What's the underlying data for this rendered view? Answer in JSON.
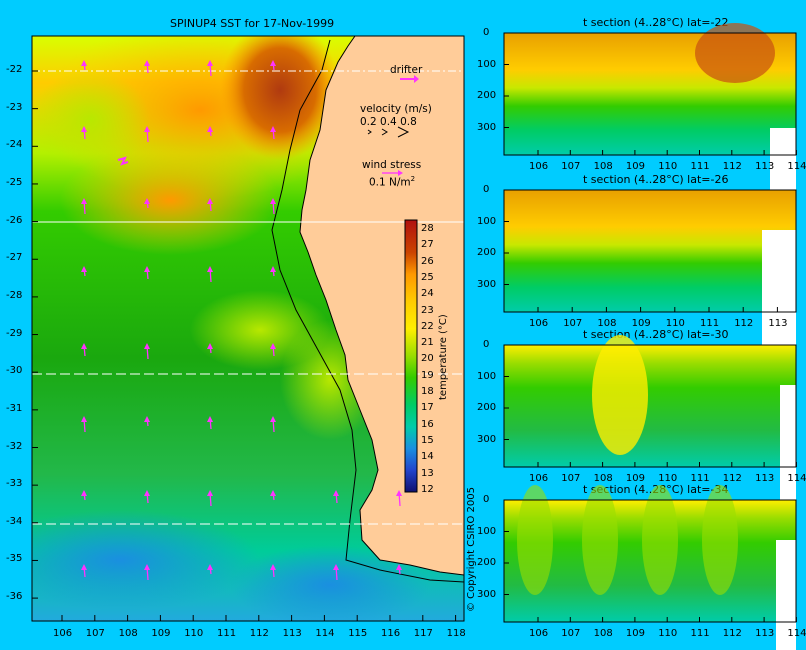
{
  "main_map": {
    "title": "SPINUP4 SST for 17-Nov-1999",
    "lat_ticks": [
      "-22",
      "-23",
      "-24",
      "-25",
      "-26",
      "-27",
      "-28",
      "-29",
      "-30",
      "-31",
      "-32",
      "-33",
      "-34",
      "-35",
      "-36"
    ],
    "lon_ticks": [
      "106",
      "107",
      "108",
      "109",
      "110",
      "111",
      "112",
      "113",
      "114",
      "115",
      "116",
      "117",
      "118"
    ],
    "drifter_label": "drifter",
    "velocity_label": "velocity (m/s)",
    "velocity_scale": "0.2 0.4 0.8",
    "wind_label": "wind stress",
    "wind_scale": "0.1 N/m",
    "wind_superscript": "2",
    "copyright": "© Copyright CSIRO 2005",
    "colorbar_label": "temperature (°C)",
    "colorbar_ticks": [
      "28",
      "27",
      "26",
      "25",
      "24",
      "23",
      "22",
      "21",
      "20",
      "19",
      "18",
      "17",
      "16",
      "15",
      "14",
      "13",
      "12"
    ],
    "colors": {
      "background": "#00ccff",
      "land": "#ffcc99",
      "arrow": "#ff33ff",
      "coast": "#000000"
    }
  },
  "sections": [
    {
      "title": "t section (4..28°C) lat=-22",
      "depth_ticks": [
        "0",
        "100",
        "200",
        "300"
      ],
      "lon_ticks": [
        "106",
        "107",
        "108",
        "109",
        "110",
        "111",
        "112",
        "113",
        "114"
      ]
    },
    {
      "title": "t section (4..28°C) lat=-26",
      "depth_ticks": [
        "0",
        "100",
        "200",
        "300"
      ],
      "lon_ticks": [
        "106",
        "107",
        "108",
        "109",
        "110",
        "111",
        "112",
        "113"
      ]
    },
    {
      "title": "t section (4..28°C) lat=-30",
      "depth_ticks": [
        "0",
        "100",
        "200",
        "300"
      ],
      "lon_ticks": [
        "106",
        "107",
        "108",
        "109",
        "110",
        "111",
        "112",
        "113",
        "114"
      ]
    },
    {
      "title": "t section (4..28°C) lat=-34",
      "depth_ticks": [
        "0",
        "100",
        "200",
        "300"
      ],
      "lon_ticks": [
        "106",
        "107",
        "108",
        "109",
        "110",
        "111",
        "112",
        "113",
        "114"
      ]
    }
  ]
}
